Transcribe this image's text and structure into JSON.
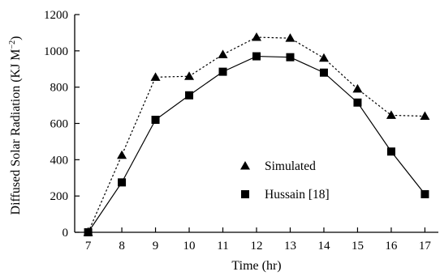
{
  "chart_data": {
    "type": "line",
    "title": "",
    "xlabel": "Time (hr)",
    "ylabel": "Diffused Solar Radiation (KJ M",
    "ylabel_unit_exp": "−2",
    "ylabel_close": ")",
    "x": [
      7,
      8,
      9,
      10,
      11,
      12,
      13,
      14,
      15,
      16,
      17
    ],
    "x_ticks": [
      "7",
      "8",
      "9",
      "10",
      "11",
      "12",
      "13",
      "14",
      "15",
      "16",
      "17"
    ],
    "y_ticks": [
      "0",
      "200",
      "400",
      "600",
      "800",
      "1000",
      "1200"
    ],
    "xlim": [
      6.6,
      17.4
    ],
    "ylim": [
      0,
      1200
    ],
    "grid": false,
    "legend_position": "lower-right",
    "series": [
      {
        "name": "Simulated",
        "marker": "triangle",
        "line_style": "dotted",
        "color": "#000000",
        "values": [
          0,
          425,
          855,
          860,
          980,
          1075,
          1070,
          960,
          790,
          645,
          640
        ]
      },
      {
        "name": "Hussain [18]",
        "marker": "square",
        "line_style": "solid",
        "color": "#000000",
        "values": [
          0,
          275,
          620,
          755,
          885,
          970,
          965,
          880,
          715,
          445,
          210
        ]
      }
    ]
  }
}
